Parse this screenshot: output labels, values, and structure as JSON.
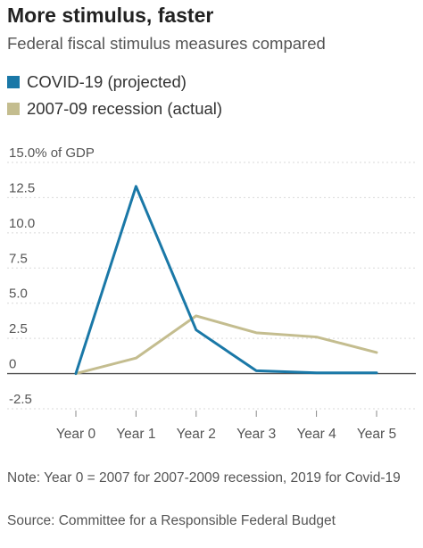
{
  "header": {
    "title": "More stimulus, faster",
    "subtitle": "Federal fiscal stimulus measures compared"
  },
  "footer": {
    "note": "Note: Year 0 = 2007 for 2007-2009 recession, 2019 for Covid-19",
    "source": "Source: Committee for a Responsible Federal Budget"
  },
  "colors": {
    "covid": "#1a78a7",
    "recession": "#c4bd8f",
    "grid": "#d9d9d9",
    "zero": "#555555",
    "text": "#555555"
  },
  "chart_data": {
    "type": "line",
    "categories": [
      "Year 0",
      "Year 1",
      "Year 2",
      "Year 3",
      "Year 4",
      "Year 5"
    ],
    "series": [
      {
        "name": "COVID-19 (projected)",
        "values": [
          0.0,
          13.3,
          3.1,
          0.2,
          0.05,
          0.05
        ]
      },
      {
        "name": "2007-09 recession (actual)",
        "values": [
          0.0,
          1.1,
          4.1,
          2.9,
          2.6,
          1.5
        ]
      }
    ],
    "ylim": [
      -2.5,
      15.0
    ],
    "yticks": [
      {
        "value": 15.0,
        "label": "15.0% of GDP"
      },
      {
        "value": 12.5,
        "label": "12.5"
      },
      {
        "value": 10.0,
        "label": "10.0"
      },
      {
        "value": 7.5,
        "label": "7.5"
      },
      {
        "value": 5.0,
        "label": "5.0"
      },
      {
        "value": 2.5,
        "label": "2.5"
      },
      {
        "value": 0,
        "label": "0"
      },
      {
        "value": -2.5,
        "label": "-2.5"
      }
    ],
    "title": "",
    "xlabel": "",
    "ylabel": "",
    "grid": true,
    "legend_position": "top-left"
  }
}
